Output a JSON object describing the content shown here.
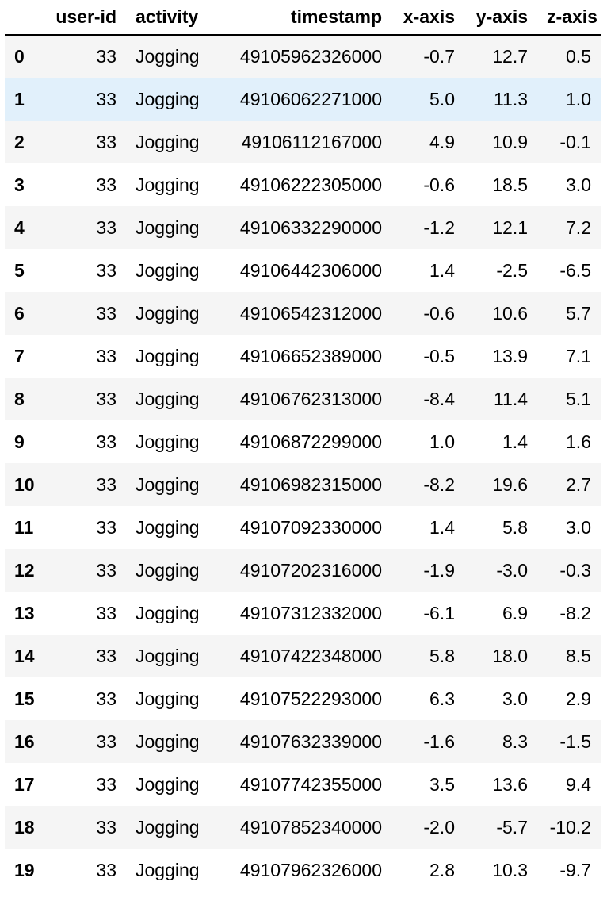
{
  "table": {
    "columns": [
      "",
      "user-id",
      "activity",
      "timestamp",
      "x-axis",
      "y-axis",
      "z-axis"
    ],
    "highlighted_row_index": "1",
    "rows": [
      {
        "index": "0",
        "user_id": "33",
        "activity": "Jogging",
        "timestamp": "49105962326000",
        "x_axis": "-0.7",
        "y_axis": "12.7",
        "z_axis": "0.5"
      },
      {
        "index": "1",
        "user_id": "33",
        "activity": "Jogging",
        "timestamp": "49106062271000",
        "x_axis": "5.0",
        "y_axis": "11.3",
        "z_axis": "1.0"
      },
      {
        "index": "2",
        "user_id": "33",
        "activity": "Jogging",
        "timestamp": "49106112167000",
        "x_axis": "4.9",
        "y_axis": "10.9",
        "z_axis": "-0.1"
      },
      {
        "index": "3",
        "user_id": "33",
        "activity": "Jogging",
        "timestamp": "49106222305000",
        "x_axis": "-0.6",
        "y_axis": "18.5",
        "z_axis": "3.0"
      },
      {
        "index": "4",
        "user_id": "33",
        "activity": "Jogging",
        "timestamp": "49106332290000",
        "x_axis": "-1.2",
        "y_axis": "12.1",
        "z_axis": "7.2"
      },
      {
        "index": "5",
        "user_id": "33",
        "activity": "Jogging",
        "timestamp": "49106442306000",
        "x_axis": "1.4",
        "y_axis": "-2.5",
        "z_axis": "-6.5"
      },
      {
        "index": "6",
        "user_id": "33",
        "activity": "Jogging",
        "timestamp": "49106542312000",
        "x_axis": "-0.6",
        "y_axis": "10.6",
        "z_axis": "5.7"
      },
      {
        "index": "7",
        "user_id": "33",
        "activity": "Jogging",
        "timestamp": "49106652389000",
        "x_axis": "-0.5",
        "y_axis": "13.9",
        "z_axis": "7.1"
      },
      {
        "index": "8",
        "user_id": "33",
        "activity": "Jogging",
        "timestamp": "49106762313000",
        "x_axis": "-8.4",
        "y_axis": "11.4",
        "z_axis": "5.1"
      },
      {
        "index": "9",
        "user_id": "33",
        "activity": "Jogging",
        "timestamp": "49106872299000",
        "x_axis": "1.0",
        "y_axis": "1.4",
        "z_axis": "1.6"
      },
      {
        "index": "10",
        "user_id": "33",
        "activity": "Jogging",
        "timestamp": "49106982315000",
        "x_axis": "-8.2",
        "y_axis": "19.6",
        "z_axis": "2.7"
      },
      {
        "index": "11",
        "user_id": "33",
        "activity": "Jogging",
        "timestamp": "49107092330000",
        "x_axis": "1.4",
        "y_axis": "5.8",
        "z_axis": "3.0"
      },
      {
        "index": "12",
        "user_id": "33",
        "activity": "Jogging",
        "timestamp": "49107202316000",
        "x_axis": "-1.9",
        "y_axis": "-3.0",
        "z_axis": "-0.3"
      },
      {
        "index": "13",
        "user_id": "33",
        "activity": "Jogging",
        "timestamp": "49107312332000",
        "x_axis": "-6.1",
        "y_axis": "6.9",
        "z_axis": "-8.2"
      },
      {
        "index": "14",
        "user_id": "33",
        "activity": "Jogging",
        "timestamp": "49107422348000",
        "x_axis": "5.8",
        "y_axis": "18.0",
        "z_axis": "8.5"
      },
      {
        "index": "15",
        "user_id": "33",
        "activity": "Jogging",
        "timestamp": "49107522293000",
        "x_axis": "6.3",
        "y_axis": "3.0",
        "z_axis": "2.9"
      },
      {
        "index": "16",
        "user_id": "33",
        "activity": "Jogging",
        "timestamp": "49107632339000",
        "x_axis": "-1.6",
        "y_axis": "8.3",
        "z_axis": "-1.5"
      },
      {
        "index": "17",
        "user_id": "33",
        "activity": "Jogging",
        "timestamp": "49107742355000",
        "x_axis": "3.5",
        "y_axis": "13.6",
        "z_axis": "9.4"
      },
      {
        "index": "18",
        "user_id": "33",
        "activity": "Jogging",
        "timestamp": "49107852340000",
        "x_axis": "-2.0",
        "y_axis": "-5.7",
        "z_axis": "-10.2"
      },
      {
        "index": "19",
        "user_id": "33",
        "activity": "Jogging",
        "timestamp": "49107962326000",
        "x_axis": "2.8",
        "y_axis": "10.3",
        "z_axis": "-9.7"
      }
    ]
  },
  "colors": {
    "header_rule": "#000000",
    "stripe": "#f5f5f5",
    "hover_highlight": "#e1f0fb"
  }
}
